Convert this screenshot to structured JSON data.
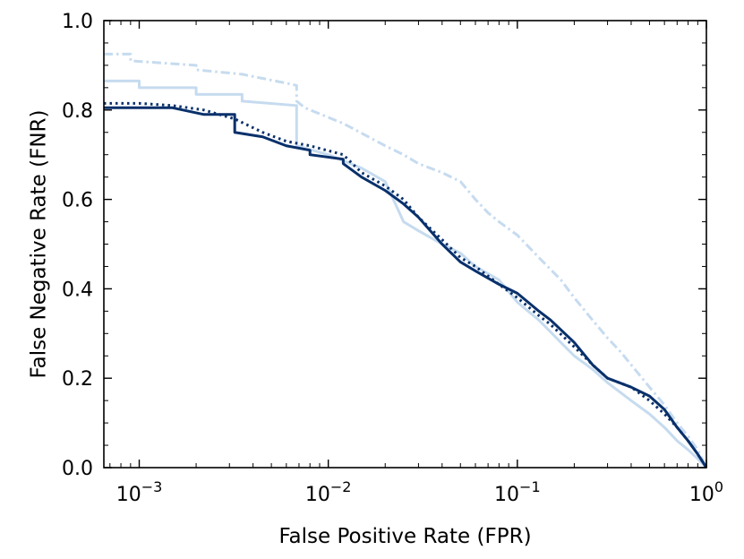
{
  "chart_data": {
    "type": "line",
    "title": "",
    "xlabel": "False Positive Rate (FPR)",
    "ylabel": "False Negative Rate (FNR)",
    "xscale": "log",
    "xlim": [
      0.00065,
      1.0
    ],
    "ylim": [
      0.0,
      1.0
    ],
    "grid": false,
    "legend": "none",
    "x_ticks": [
      {
        "value": 0.001,
        "base": "10",
        "exp": "−3"
      },
      {
        "value": 0.01,
        "base": "10",
        "exp": "−2"
      },
      {
        "value": 0.1,
        "base": "10",
        "exp": "−1"
      },
      {
        "value": 1.0,
        "base": "10",
        "exp": "0"
      }
    ],
    "y_ticks": [
      {
        "value": 0.0,
        "label": "0.0"
      },
      {
        "value": 0.2,
        "label": "0.2"
      },
      {
        "value": 0.4,
        "label": "0.4"
      },
      {
        "value": 0.6,
        "label": "0.6"
      },
      {
        "value": 0.8,
        "label": "0.8"
      },
      {
        "value": 1.0,
        "label": "1.0"
      }
    ],
    "series": [
      {
        "name": "light-dashdot",
        "color": "#c6dbef",
        "style": "dashdot",
        "x": [
          0.00065,
          0.0009,
          0.0009,
          0.002,
          0.002,
          0.0035,
          0.006,
          0.0068,
          0.0068,
          0.0075,
          0.012,
          0.02,
          0.025,
          0.03,
          0.04,
          0.05,
          0.06,
          0.07,
          0.08,
          0.1,
          0.13,
          0.17,
          0.2,
          0.25,
          0.3,
          0.35,
          0.4,
          0.5,
          0.6,
          0.7,
          0.8,
          0.9,
          1.0
        ],
        "y": [
          0.925,
          0.925,
          0.91,
          0.9,
          0.89,
          0.88,
          0.86,
          0.855,
          0.82,
          0.805,
          0.77,
          0.72,
          0.7,
          0.68,
          0.66,
          0.64,
          0.6,
          0.57,
          0.55,
          0.52,
          0.47,
          0.42,
          0.38,
          0.33,
          0.29,
          0.26,
          0.23,
          0.18,
          0.14,
          0.1,
          0.07,
          0.04,
          0.0
        ]
      },
      {
        "name": "light-solid",
        "color": "#c6dbef",
        "style": "solid",
        "x": [
          0.00065,
          0.001,
          0.001,
          0.002,
          0.002,
          0.0035,
          0.0035,
          0.0068,
          0.0068,
          0.01,
          0.015,
          0.02,
          0.025,
          0.03,
          0.04,
          0.05,
          0.06,
          0.08,
          0.1,
          0.13,
          0.17,
          0.2,
          0.25,
          0.3,
          0.4,
          0.5,
          0.6,
          0.7,
          0.8,
          0.9,
          1.0
        ],
        "y": [
          0.865,
          0.865,
          0.85,
          0.85,
          0.835,
          0.835,
          0.82,
          0.81,
          0.72,
          0.7,
          0.67,
          0.64,
          0.55,
          0.53,
          0.5,
          0.48,
          0.45,
          0.42,
          0.37,
          0.33,
          0.28,
          0.25,
          0.22,
          0.19,
          0.15,
          0.12,
          0.09,
          0.06,
          0.04,
          0.02,
          0.0
        ]
      },
      {
        "name": "dark-solid",
        "color": "#08306b",
        "style": "solid",
        "x": [
          0.00065,
          0.0015,
          0.0022,
          0.0022,
          0.0032,
          0.0032,
          0.0045,
          0.006,
          0.008,
          0.008,
          0.012,
          0.012,
          0.015,
          0.02,
          0.025,
          0.03,
          0.04,
          0.05,
          0.06,
          0.08,
          0.1,
          0.13,
          0.15,
          0.2,
          0.25,
          0.3,
          0.4,
          0.5,
          0.6,
          0.7,
          0.8,
          0.9,
          1.0
        ],
        "y": [
          0.805,
          0.805,
          0.79,
          0.79,
          0.79,
          0.75,
          0.74,
          0.72,
          0.71,
          0.7,
          0.69,
          0.68,
          0.65,
          0.62,
          0.59,
          0.56,
          0.5,
          0.46,
          0.44,
          0.41,
          0.39,
          0.35,
          0.33,
          0.28,
          0.23,
          0.2,
          0.18,
          0.16,
          0.13,
          0.09,
          0.06,
          0.03,
          0.0
        ]
      },
      {
        "name": "dark-dotted",
        "color": "#08306b",
        "style": "dotted",
        "x": [
          0.00065,
          0.001,
          0.0015,
          0.0022,
          0.0032,
          0.0045,
          0.006,
          0.008,
          0.012,
          0.015,
          0.02,
          0.025,
          0.03,
          0.04,
          0.05,
          0.06,
          0.08,
          0.1,
          0.13,
          0.15,
          0.2,
          0.25,
          0.3,
          0.4,
          0.5,
          0.6,
          0.7,
          0.8,
          0.9,
          1.0
        ],
        "y": [
          0.815,
          0.815,
          0.81,
          0.8,
          0.78,
          0.75,
          0.73,
          0.72,
          0.7,
          0.66,
          0.63,
          0.6,
          0.56,
          0.51,
          0.47,
          0.45,
          0.41,
          0.38,
          0.34,
          0.32,
          0.27,
          0.23,
          0.2,
          0.18,
          0.15,
          0.12,
          0.09,
          0.06,
          0.03,
          0.0
        ]
      }
    ]
  }
}
